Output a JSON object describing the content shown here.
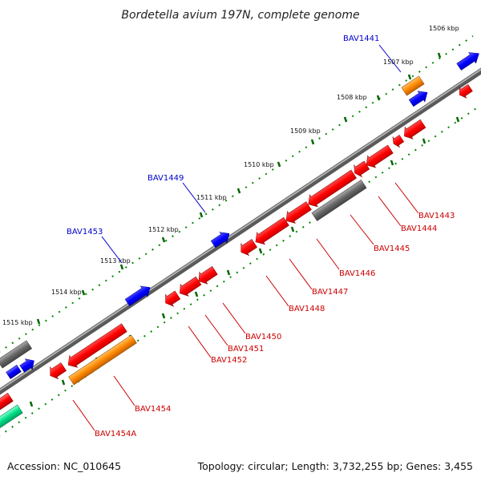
{
  "title": "Bordetella avium 197N, complete genome",
  "footer": {
    "accession": "Accession: NC_010645",
    "summary": "Topology: circular; Length: 3,732,255 bp; Genes: 3,455"
  },
  "colors": {
    "backbone": "#808080",
    "forward_strand_genes": "#ff0000",
    "orange_genes": "#ff8800",
    "blue_genes": "#0000ff",
    "gray_genes": "#666666",
    "green_genes": "#00dd88",
    "ticks": "#006600",
    "forward_labels": "#0000cc",
    "reverse_labels": "#cc0000"
  },
  "kbp_labels": [
    "1506 kbp",
    "1507 kbp",
    "1508 kbp",
    "1509 kbp",
    "1510 kbp",
    "1511 kbp",
    "1512 kbp",
    "1513 kbp",
    "1514 kbp",
    "1515 kbp"
  ],
  "forward_gene_labels": [
    "BAV1441",
    "BAV1449",
    "BAV1453"
  ],
  "reverse_gene_labels": [
    "BAV1443",
    "BAV1444",
    "BAV1445",
    "BAV1446",
    "BAV1447",
    "BAV1448",
    "BAV1450",
    "BAV1451",
    "BAV1452",
    "BAV1454",
    "BAV1454A"
  ]
}
